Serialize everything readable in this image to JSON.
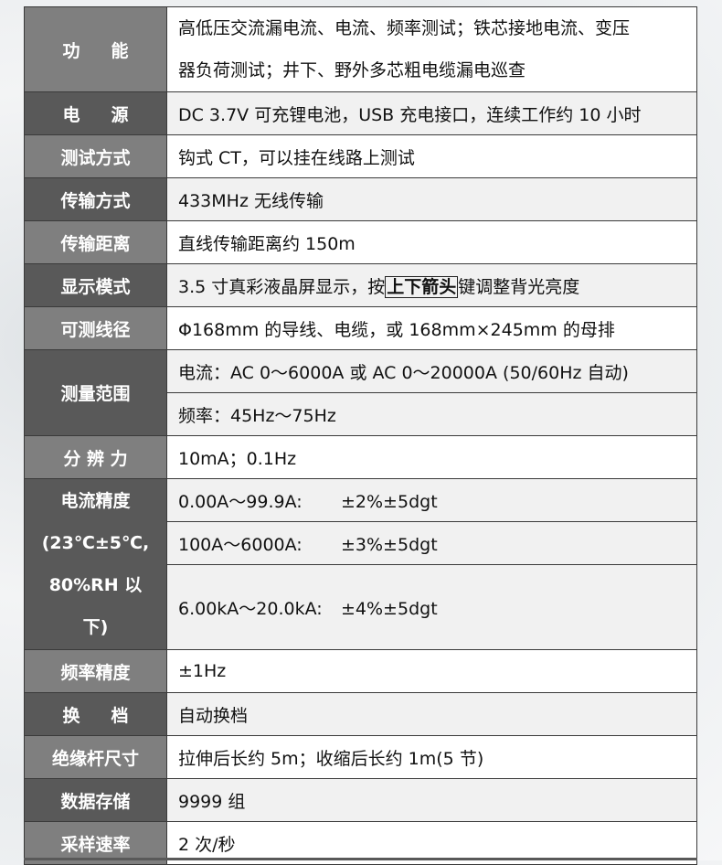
{
  "rows": [
    {
      "label": "功能",
      "value_lines": [
        "高低压交流漏电流、电流、频率测试；铁芯接地电流、变压",
        "器负荷测试；井下、野外多芯粗电缆漏电巡查"
      ]
    },
    {
      "label": "电源",
      "value": "DC 3.7V 可充锂电池，USB 充电接口，连续工作约 10 小时"
    },
    {
      "label": "测试方式",
      "value": "钩式 CT，可以挂在线路上测试"
    },
    {
      "label": "传输方式",
      "value": "433MHz 无线传输"
    },
    {
      "label": "传输距离",
      "value": "直线传输距离约 150m"
    },
    {
      "label": "显示模式",
      "value_before": "3.5 寸真彩液晶屏显示，按",
      "value_bold": "上下箭头",
      "value_after": "键调整背光亮度"
    },
    {
      "label": "可测线径",
      "value": "Φ168mm 的导线、电缆，或 168mm×245mm 的母排"
    },
    {
      "label": "测量范围",
      "values": [
        "电流：AC 0～6000A 或 AC 0～20000A (50/60Hz 自动)",
        "频率：45Hz～75Hz"
      ]
    },
    {
      "label": "分 辨 力",
      "value": "10mA；0.1Hz"
    },
    {
      "label_lines": [
        "电流精度",
        "(23℃±5℃,",
        "80%RH 以",
        "下)"
      ],
      "values": [
        {
          "range": "0.00A～99.9A:",
          "acc": "±2%±5dgt"
        },
        {
          "range": "100A～6000A:",
          "acc": "±3%±5dgt"
        },
        {
          "range": "6.00kA～20.0kA:",
          "acc": "±4%±5dgt"
        }
      ]
    },
    {
      "label": "频率精度",
      "value": "±1Hz"
    },
    {
      "label": "换档",
      "value": "自动换档"
    },
    {
      "label": "绝缘杆尺寸",
      "value": "拉伸后长约 5m；收缩后长约 1m(5 节)"
    },
    {
      "label": "数据存储",
      "value": "9999 组"
    },
    {
      "label": "采样速率",
      "value": "2 次/秒"
    }
  ],
  "colors": {
    "label_light": "#7f7f7f",
    "label_dark": "#595959",
    "value_light": "#ffffff",
    "value_gray": "#f1f1f1"
  }
}
